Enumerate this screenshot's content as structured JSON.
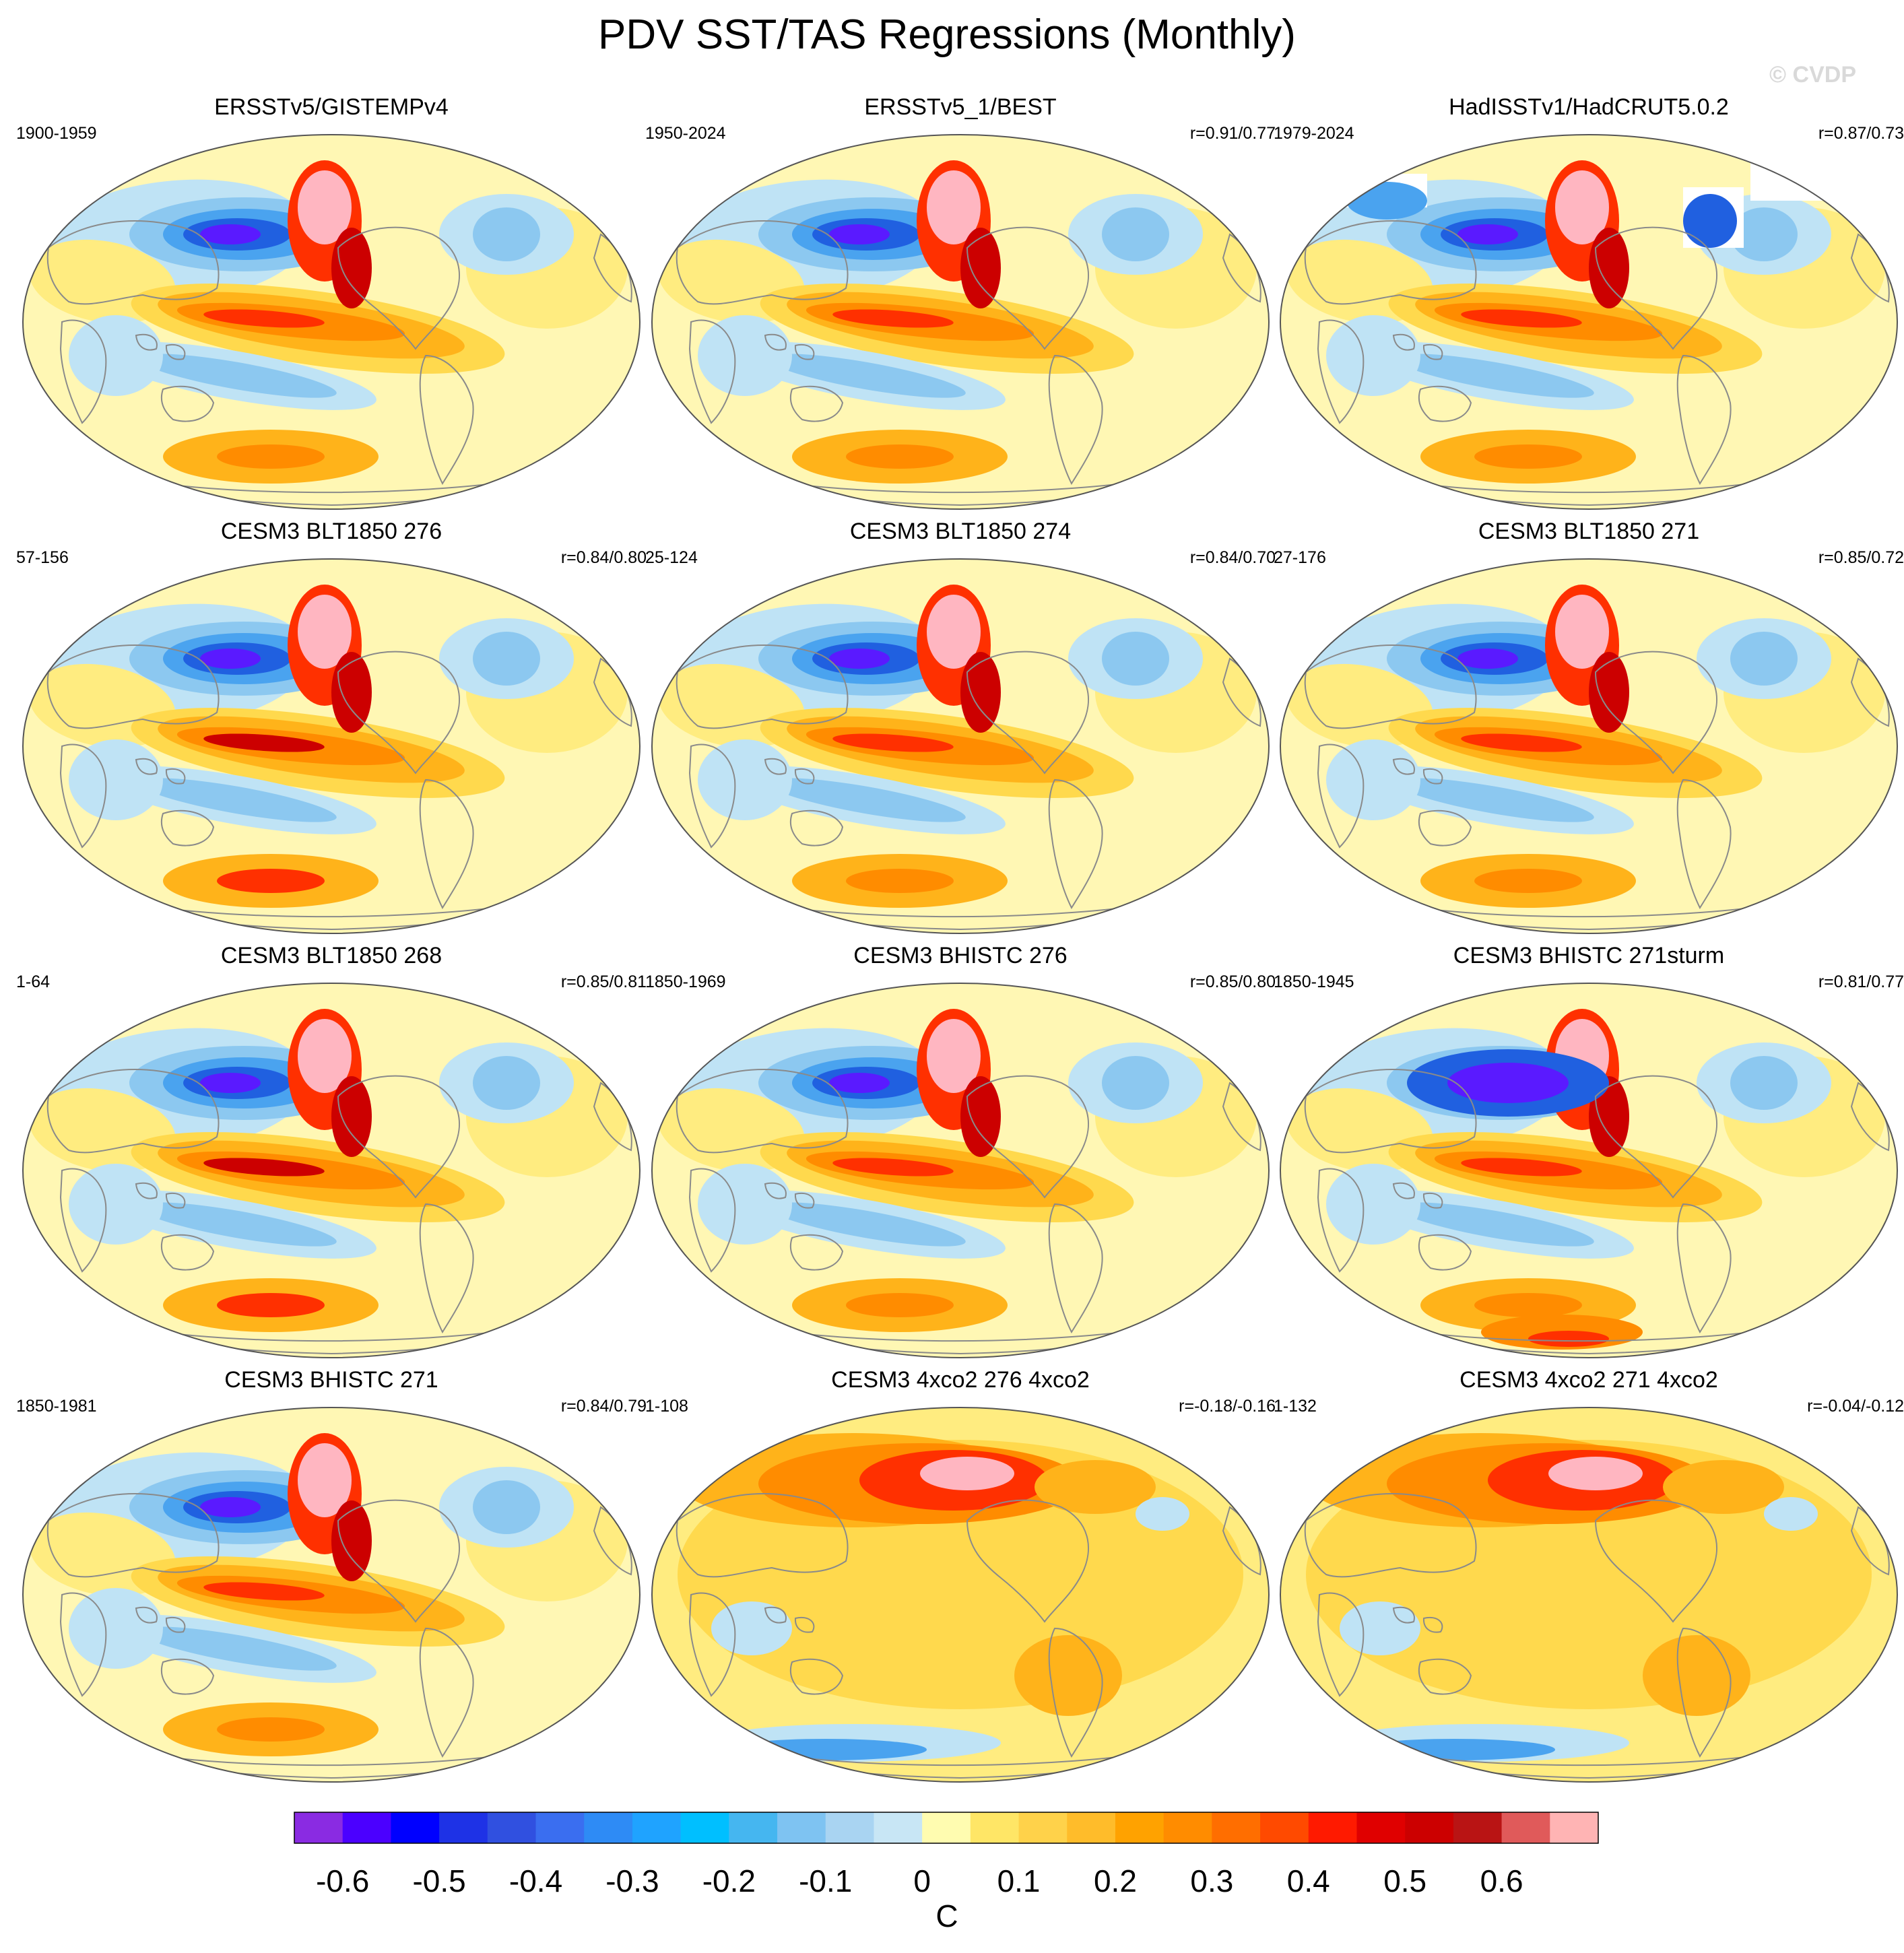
{
  "title": "PDV SST/TAS Regressions (Monthly)",
  "watermark": "© CVDP",
  "panels": [
    {
      "title": "ERSSTv5/GISTEMPv4",
      "period": "1900-1959",
      "corr": "",
      "variant": "obs1"
    },
    {
      "title": "ERSSTv5_1/BEST",
      "period": "1950-2024",
      "corr": "r=0.91/0.77",
      "variant": "obs2"
    },
    {
      "title": "HadISSTv1/HadCRUT5.0.2",
      "period": "1979-2024",
      "corr": "r=0.87/0.73",
      "variant": "obs3"
    },
    {
      "title": "CESM3 BLT1850 276",
      "period": "57-156",
      "corr": "r=0.84/0.80",
      "variant": "strong"
    },
    {
      "title": "CESM3 BLT1850 274",
      "period": "25-124",
      "corr": "r=0.84/0.70",
      "variant": "model"
    },
    {
      "title": "CESM3 BLT1850 271",
      "period": "27-176",
      "corr": "r=0.85/0.72",
      "variant": "model"
    },
    {
      "title": "CESM3 BLT1850 268",
      "period": "1-64",
      "corr": "r=0.85/0.81",
      "variant": "strong"
    },
    {
      "title": "CESM3 BHISTC 276",
      "period": "1850-1969",
      "corr": "r=0.85/0.80",
      "variant": "model"
    },
    {
      "title": "CESM3 BHISTC 271sturm",
      "period": "1850-1945",
      "corr": "r=0.81/0.77",
      "variant": "sturm"
    },
    {
      "title": "CESM3 BHISTC 271",
      "period": "1850-1981",
      "corr": "r=0.84/0.79",
      "variant": "model"
    },
    {
      "title": "CESM3 4xco2 276 4xco2",
      "period": "1-108",
      "corr": "r=-0.18/-0.16",
      "variant": "warm"
    },
    {
      "title": "CESM3 4xco2 271 4xco2",
      "period": "1-132",
      "corr": "r=-0.04/-0.12",
      "variant": "warm"
    }
  ],
  "colorbar": {
    "colors": [
      "#8a2be2",
      "#4b00ff",
      "#0000ff",
      "#1e32e6",
      "#3050e0",
      "#3a6ef0",
      "#2e8bf5",
      "#1fa3ff",
      "#00bfff",
      "#45b6f0",
      "#7ec3f2",
      "#a9d4f2",
      "#c8e6f5",
      "#fffcb0",
      "#ffe666",
      "#ffd24a",
      "#ffbc2a",
      "#ffa200",
      "#ff8c00",
      "#ff6e00",
      "#ff4a00",
      "#ff1a00",
      "#e00000",
      "#cc0000",
      "#b91414",
      "#e05a5a",
      "#ffb4b4"
    ],
    "labels": [
      "-0.6",
      "-0.5",
      "-0.4",
      "-0.3",
      "-0.2",
      "-0.1",
      "0",
      "0.1",
      "0.2",
      "0.3",
      "0.4",
      "0.5",
      "0.6"
    ],
    "units": "C"
  }
}
